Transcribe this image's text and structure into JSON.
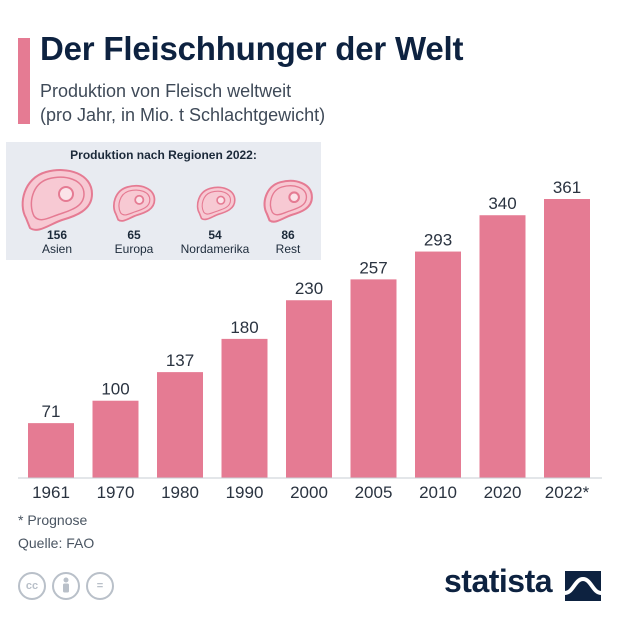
{
  "header": {
    "title": "Der Fleischhunger der Welt",
    "subtitle_line1": "Produktion von Fleisch weltweit",
    "subtitle_line2": "(pro Jahr, in Mio. t Schlachtgewicht)"
  },
  "regions": {
    "title": "Produktion nach Regionen 2022:",
    "items": [
      {
        "value": "156",
        "label": "Asien"
      },
      {
        "value": "65",
        "label": "Europa"
      },
      {
        "value": "54",
        "label": "Nordamerika"
      },
      {
        "value": "86",
        "label": "Rest"
      }
    ]
  },
  "chart_data": {
    "type": "bar",
    "categories": [
      "1961",
      "1970",
      "1980",
      "1990",
      "2000",
      "2005",
      "2010",
      "2020",
      "2022*"
    ],
    "values": [
      71,
      100,
      137,
      180,
      230,
      257,
      293,
      340,
      361
    ],
    "title": "Der Fleischhunger der Welt",
    "subtitle": "Produktion von Fleisch weltweit (pro Jahr, in Mio. t Schlachtgewicht)",
    "ylim": [
      0,
      361
    ],
    "grid": false,
    "bar_color": "#e57b93"
  },
  "footer": {
    "note": "* Prognose",
    "source": "Quelle: FAO",
    "brand": "statista"
  },
  "colors": {
    "accent": "#e57b93",
    "title": "#0d2240",
    "panel": "#e8ebf1"
  },
  "icons": [
    "cc-icon",
    "person-icon",
    "equals-icon",
    "statista-logo-icon"
  ]
}
